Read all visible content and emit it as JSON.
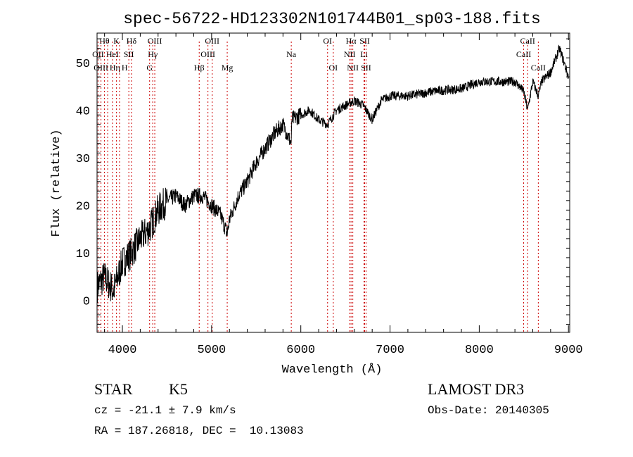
{
  "chart_data": {
    "type": "line",
    "title": "spec-56722-HD123302N101744B01_sp03-188.fits",
    "xlabel": "Wavelength (Å)",
    "ylabel": "Flux (relative)",
    "xlim": [
      3716,
      9014
    ],
    "ylim": [
      -6.7,
      56.2
    ],
    "xticks": [
      4000,
      5000,
      6000,
      7000,
      8000,
      9000
    ],
    "yticks": [
      0,
      10,
      20,
      30,
      40,
      50
    ],
    "series": [
      {
        "name": "spectrum",
        "x": [
          3720,
          3800,
          3900,
          4000,
          4100,
          4200,
          4300,
          4400,
          4500,
          4600,
          4700,
          4800,
          4900,
          5000,
          5100,
          5175,
          5200,
          5300,
          5400,
          5500,
          5600,
          5700,
          5800,
          5893,
          5900,
          6000,
          6100,
          6200,
          6300,
          6400,
          6500,
          6600,
          6700,
          6800,
          6900,
          7000,
          7200,
          7500,
          7800,
          8000,
          8200,
          8400,
          8498,
          8542,
          8600,
          8662,
          8700,
          8800,
          8900,
          9000
        ],
        "y": [
          3,
          5,
          2,
          8,
          10,
          13,
          15,
          19,
          21,
          22,
          20,
          22,
          22,
          20,
          18,
          14,
          17,
          22,
          25,
          29,
          32,
          35,
          37,
          33,
          38,
          39,
          40,
          38,
          37,
          40,
          41,
          42,
          41,
          38,
          42,
          43,
          43,
          44,
          44.5,
          46,
          46,
          46,
          44,
          40,
          46,
          43,
          46,
          48,
          53,
          47
        ]
      }
    ],
    "lines": [
      {
        "label": "Hθ",
        "wl": 3798,
        "row": 0
      },
      {
        "label": "K",
        "wl": 3934,
        "row": 0
      },
      {
        "label": "Hδ",
        "wl": 4102,
        "row": 0
      },
      {
        "label": "OIII",
        "wl": 4363,
        "row": 0
      },
      {
        "label": "OIII",
        "wl": 5007,
        "row": 0
      },
      {
        "label": "OI",
        "wl": 6300,
        "row": 0
      },
      {
        "label": "Hα",
        "wl": 6563,
        "row": 0
      },
      {
        "label": "SII",
        "wl": 6716,
        "row": 0
      },
      {
        "label": "CaII",
        "wl": 8542,
        "row": 0
      },
      {
        "label": "OII",
        "wl": 3727,
        "row": 1
      },
      {
        "label": "HeI",
        "wl": 3889,
        "row": 1
      },
      {
        "label": "SII",
        "wl": 4072,
        "row": 1
      },
      {
        "label": "Hγ",
        "wl": 4340,
        "row": 1
      },
      {
        "label": "OIII",
        "wl": 4959,
        "row": 1
      },
      {
        "label": "Na",
        "wl": 5893,
        "row": 1
      },
      {
        "label": "NII",
        "wl": 6548,
        "row": 1
      },
      {
        "label": "Li",
        "wl": 6708,
        "row": 1
      },
      {
        "label": "CaII",
        "wl": 8498,
        "row": 1
      },
      {
        "label": "OIII",
        "wl": 3760,
        "row": 2
      },
      {
        "label": "Hη",
        "wl": 3835,
        "row": 2
      },
      {
        "label": "H",
        "wl": 3968,
        "row": 2
      },
      {
        "label": "G",
        "wl": 4305,
        "row": 2
      },
      {
        "label": "Hβ",
        "wl": 4861,
        "row": 2
      },
      {
        "label": "Mg",
        "wl": 5175,
        "row": 2
      },
      {
        "label": "OI",
        "wl": 6364,
        "row": 2
      },
      {
        "label": "NII",
        "wl": 6583,
        "row": 2
      },
      {
        "label": "SII",
        "wl": 6731,
        "row": 2
      },
      {
        "label": "CaII",
        "wl": 8662,
        "row": 2
      }
    ],
    "line_color": "#cc0000"
  },
  "info": {
    "class": "STAR",
    "subclass": "K5",
    "survey": "LAMOST DR3",
    "cz": "cz = -21.1 ± 7.9 km/s",
    "obsdate": "Obs-Date: 20140305",
    "radec": "RA = 187.26818, DEC =  10.13083"
  }
}
